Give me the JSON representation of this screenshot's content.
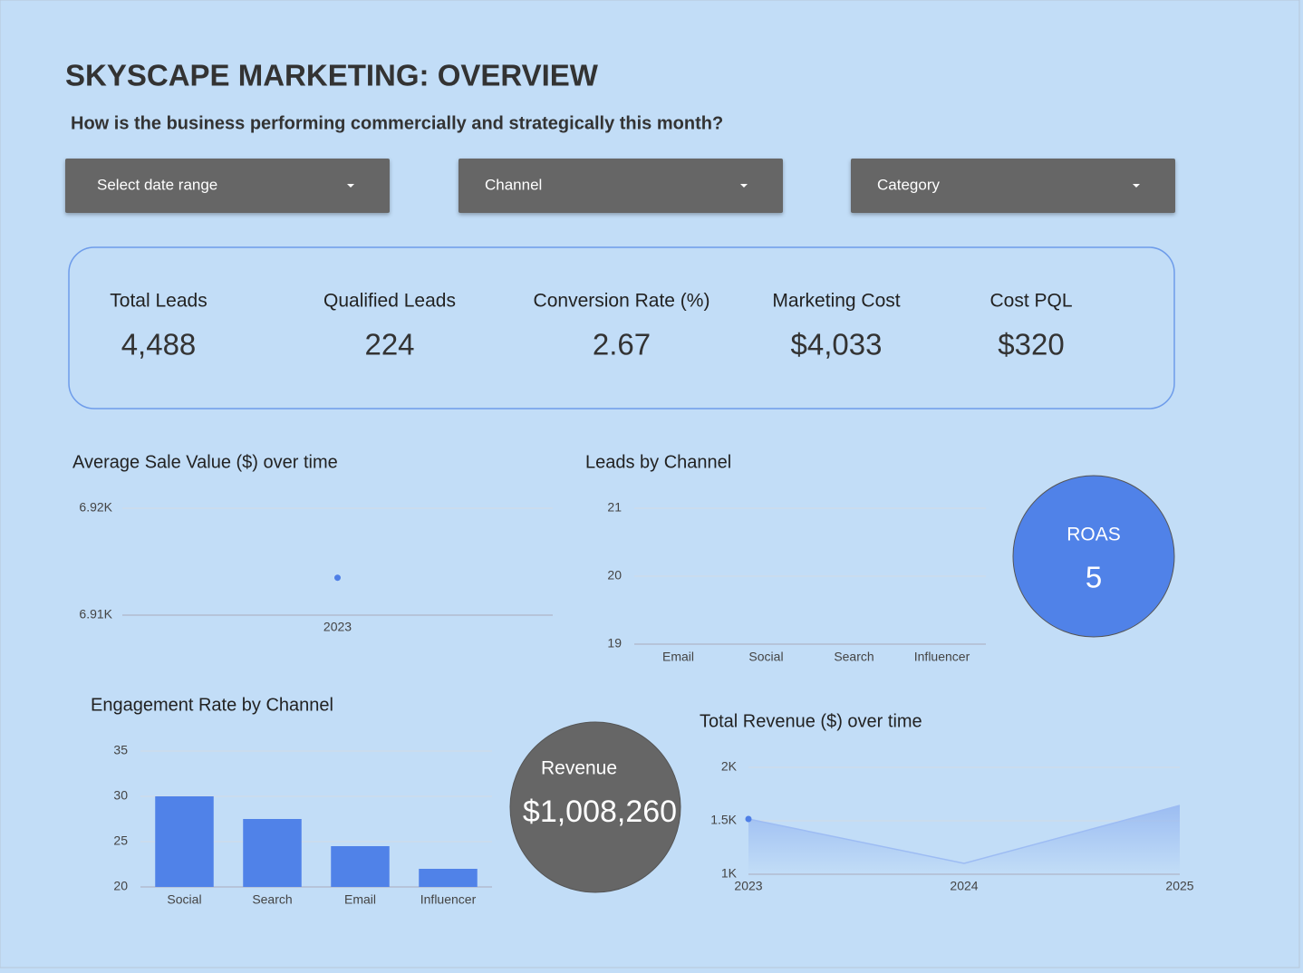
{
  "header": {
    "title": "SKYSCAPE MARKETING: OVERVIEW",
    "subtitle": "How is the business performing commercially and strategically this month?"
  },
  "filters": [
    "Select date range",
    "Channel",
    "Category"
  ],
  "kpis": [
    {
      "label": "Total Leads",
      "value": "4,488"
    },
    {
      "label": "Qualified Leads",
      "value": "224"
    },
    {
      "label": "Conversion Rate (%)",
      "value": "2.67"
    },
    {
      "label": "Marketing Cost",
      "value": "$4,033"
    },
    {
      "label": "Cost PQL",
      "value": "$320"
    }
  ],
  "scorecards": [
    {
      "label": "ROAS",
      "value": "5"
    },
    {
      "label": "Revenue",
      "value": "$1,008,260"
    }
  ],
  "chart_data": [
    {
      "type": "line",
      "title": "Average Sale Value ($) over time",
      "categories": [
        "2023"
      ],
      "values": [
        6913.5
      ],
      "color": "#4f7fe6",
      "ylim": [
        6910,
        6920
      ],
      "yticks": [
        {
          "value": 6910,
          "label": "6.91K"
        },
        {
          "value": 6920,
          "label": "6.92K"
        }
      ],
      "grid": true
    },
    {
      "type": "line",
      "title": "Leads by Channel",
      "categories": [
        "Email",
        "Social",
        "Search",
        "Influencer"
      ],
      "ylim": [
        19,
        21
      ],
      "yticks": [
        19,
        20,
        21
      ],
      "grid": true
    },
    {
      "type": "bar",
      "title": "Engagement Rate by Channel",
      "categories": [
        "Social",
        "Search",
        "Email",
        "Influencer"
      ],
      "values": [
        30,
        27.5,
        24.5,
        22
      ],
      "color": "#5082e8",
      "ylim": [
        20,
        35
      ],
      "yticks": [
        20,
        25,
        30,
        35
      ],
      "grid": true
    },
    {
      "type": "area",
      "title": "Total Revenue ($) over time",
      "categories": [
        "2023",
        "2024",
        "2025"
      ],
      "values": [
        1517,
        1102,
        1644
      ],
      "color": "#9dbcf3",
      "ylim": [
        1000,
        2000
      ],
      "yticks": [
        {
          "value": 1000,
          "label": "1K"
        },
        {
          "value": 1500,
          "label": "1.5K"
        },
        {
          "value": 2000,
          "label": "2K"
        }
      ],
      "grid": true
    }
  ]
}
